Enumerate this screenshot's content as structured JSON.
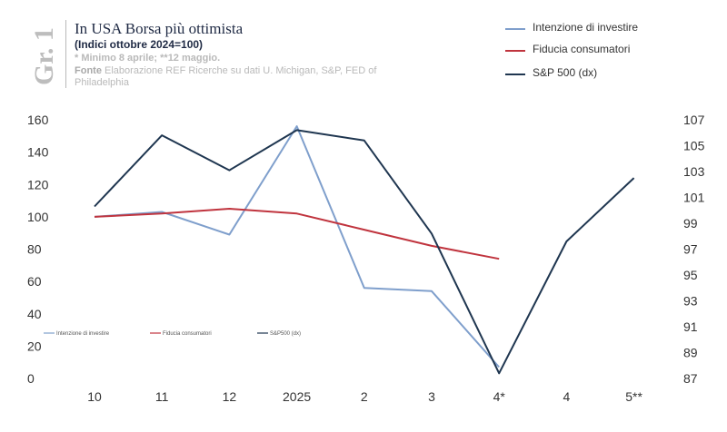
{
  "header": {
    "figure_label": "Gr. 1",
    "title": "In USA Borsa più ottimista",
    "subtitle": "(Indici ottobre 2024=100)",
    "note": "* Minimo 8 aprile; **12 maggio.",
    "source_label": "Fonte",
    "source_text": "Elaborazione REF Ricerche su dati U. Michigan, S&P, FED of Philadelphia"
  },
  "colors": {
    "intenzione": "#7f9fcc",
    "fiducia": "#c0343e",
    "sp500": "#1f3650"
  },
  "chart_data": {
    "type": "line",
    "categories": [
      "10",
      "11",
      "12",
      "2025",
      "2",
      "3",
      "4*",
      "4",
      "5**"
    ],
    "y_left": {
      "min": 0,
      "max": 160,
      "ticks": [
        0,
        20,
        40,
        60,
        80,
        100,
        120,
        140,
        160
      ]
    },
    "y_right": {
      "min": 87,
      "max": 107,
      "ticks": [
        87,
        89,
        91,
        93,
        95,
        97,
        99,
        101,
        103,
        105,
        107
      ]
    },
    "series": [
      {
        "name": "Intenzione di investire",
        "axis": "left",
        "color_key": "intenzione",
        "values": [
          100,
          103,
          89,
          156,
          56,
          54,
          7,
          null,
          null
        ]
      },
      {
        "name": "Fiducia consumatori",
        "axis": "left",
        "color_key": "fiducia",
        "values": [
          100,
          102,
          105,
          102,
          92,
          82,
          74,
          null,
          null
        ]
      },
      {
        "name": "S&P 500 (dx)",
        "axis": "right",
        "color_key": "sp500",
        "values": [
          100.3,
          105.8,
          103.1,
          106.2,
          105.4,
          98.2,
          87.4,
          97.6,
          102.5
        ]
      }
    ],
    "legend_position": "top-right",
    "grid": false
  },
  "mini_legend": [
    "Intenzione di investire",
    "Fiducia consumatori",
    "S&P500 (dx)"
  ]
}
